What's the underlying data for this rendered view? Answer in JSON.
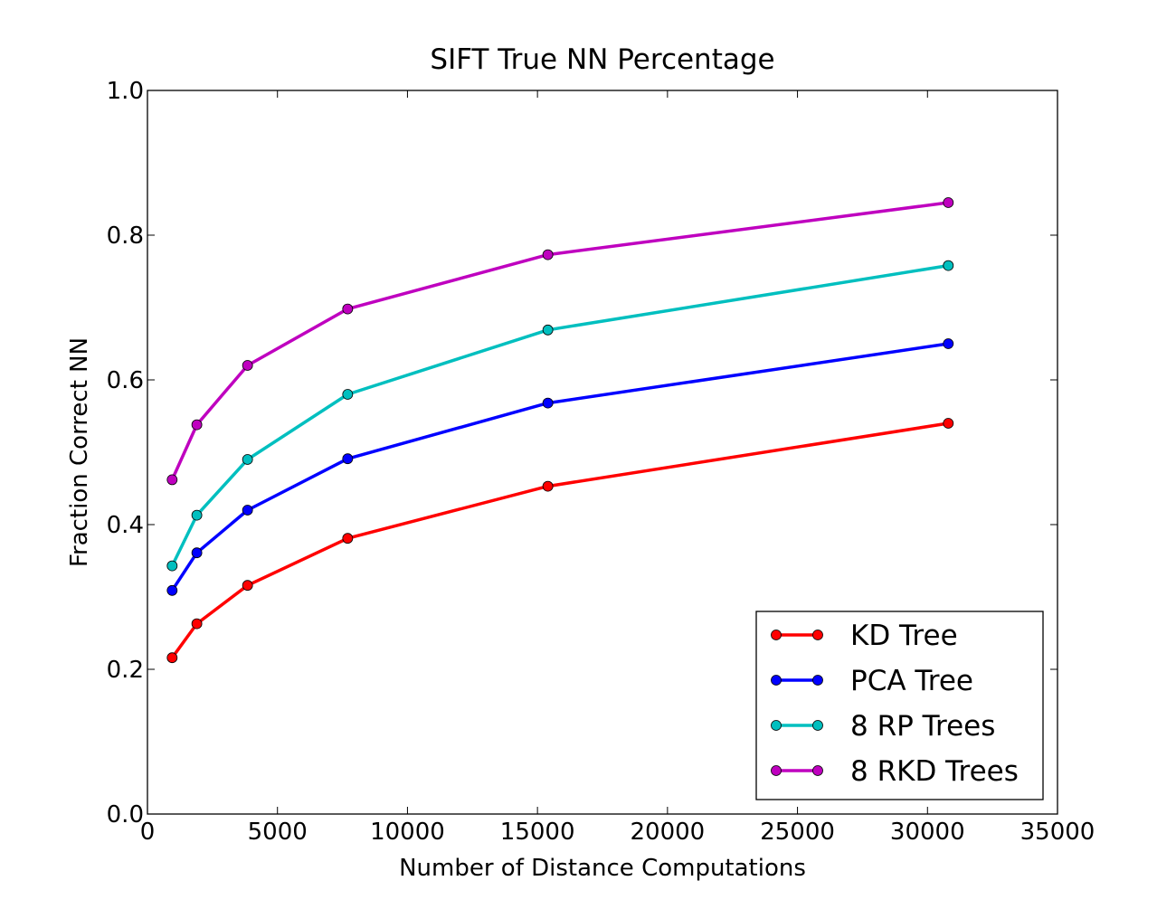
{
  "chart_data": {
    "type": "line",
    "title": "SIFT True NN Percentage",
    "xlabel": "Number of Distance Computations",
    "ylabel": "Fraction Correct NN",
    "xlim": [
      0,
      35000
    ],
    "ylim": [
      0.0,
      1.0
    ],
    "xticks": [
      0,
      5000,
      10000,
      15000,
      20000,
      25000,
      30000,
      35000
    ],
    "xtick_labels": [
      "0",
      "5000",
      "10000",
      "15000",
      "20000",
      "25000",
      "30000",
      "35000"
    ],
    "yticks": [
      0.0,
      0.2,
      0.4,
      0.6,
      0.8,
      1.0
    ],
    "ytick_labels": [
      "0.0",
      "0.2",
      "0.4",
      "0.6",
      "0.8",
      "1.0"
    ],
    "grid": false,
    "legend_position": "lower-right",
    "x": [
      950,
      1900,
      3850,
      7700,
      15400,
      30800
    ],
    "series": [
      {
        "name": "KD Tree",
        "color": "#ff0000",
        "values": [
          0.216,
          0.263,
          0.316,
          0.381,
          0.453,
          0.54
        ]
      },
      {
        "name": "PCA Tree",
        "color": "#0000ff",
        "values": [
          0.309,
          0.361,
          0.42,
          0.491,
          0.568,
          0.65
        ]
      },
      {
        "name": "8 RP Trees",
        "color": "#00bfbf",
        "values": [
          0.343,
          0.413,
          0.49,
          0.58,
          0.669,
          0.758
        ]
      },
      {
        "name": "8 RKD Trees",
        "color": "#bf00bf",
        "values": [
          0.462,
          0.538,
          0.62,
          0.698,
          0.773,
          0.845
        ]
      }
    ]
  }
}
